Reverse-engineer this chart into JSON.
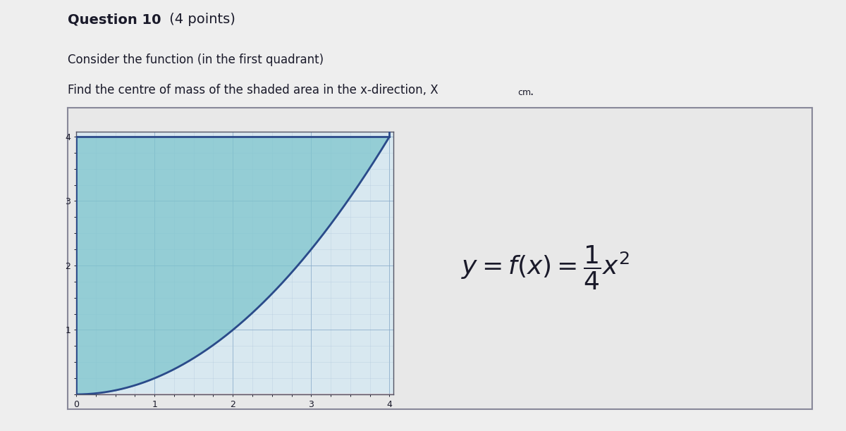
{
  "title_bold": "Question 10",
  "title_normal": " (4 points)",
  "subtitle1": "Consider the function (in the first quadrant)",
  "subtitle2": "Find the centre of mass of the shaded area in the x-direction, X",
  "subtitle2_sub": "cm",
  "subtitle2_dot": ".",
  "equation_latex": "$y = f(x) = \\dfrac{1}{4}x^2$",
  "x_min": 0,
  "x_max": 4,
  "y_min": 0,
  "y_max": 4,
  "x_ticks": [
    0,
    1,
    2,
    3,
    4
  ],
  "y_ticks": [
    1,
    2,
    3,
    4
  ],
  "shaded_color": "#7dc4cc",
  "shaded_alpha": 0.75,
  "curve_color": "#2b4a8a",
  "curve_linewidth": 2.0,
  "grid_minor_color": "#aac4d8",
  "grid_major_color": "#88aac8",
  "grid_minor_alpha": 0.5,
  "grid_major_alpha": 0.8,
  "plot_bg": "#d8e8f0",
  "outer_box_bg": "#e8e8e8",
  "fig_bg": "#eeeeee",
  "border_color": "#555566",
  "outer_border_color": "#888899",
  "text_color": "#1a1a2a",
  "title_fontsize": 14,
  "subtitle_fontsize": 12,
  "equation_fontsize": 26,
  "red_axis_color": "#cc3333"
}
